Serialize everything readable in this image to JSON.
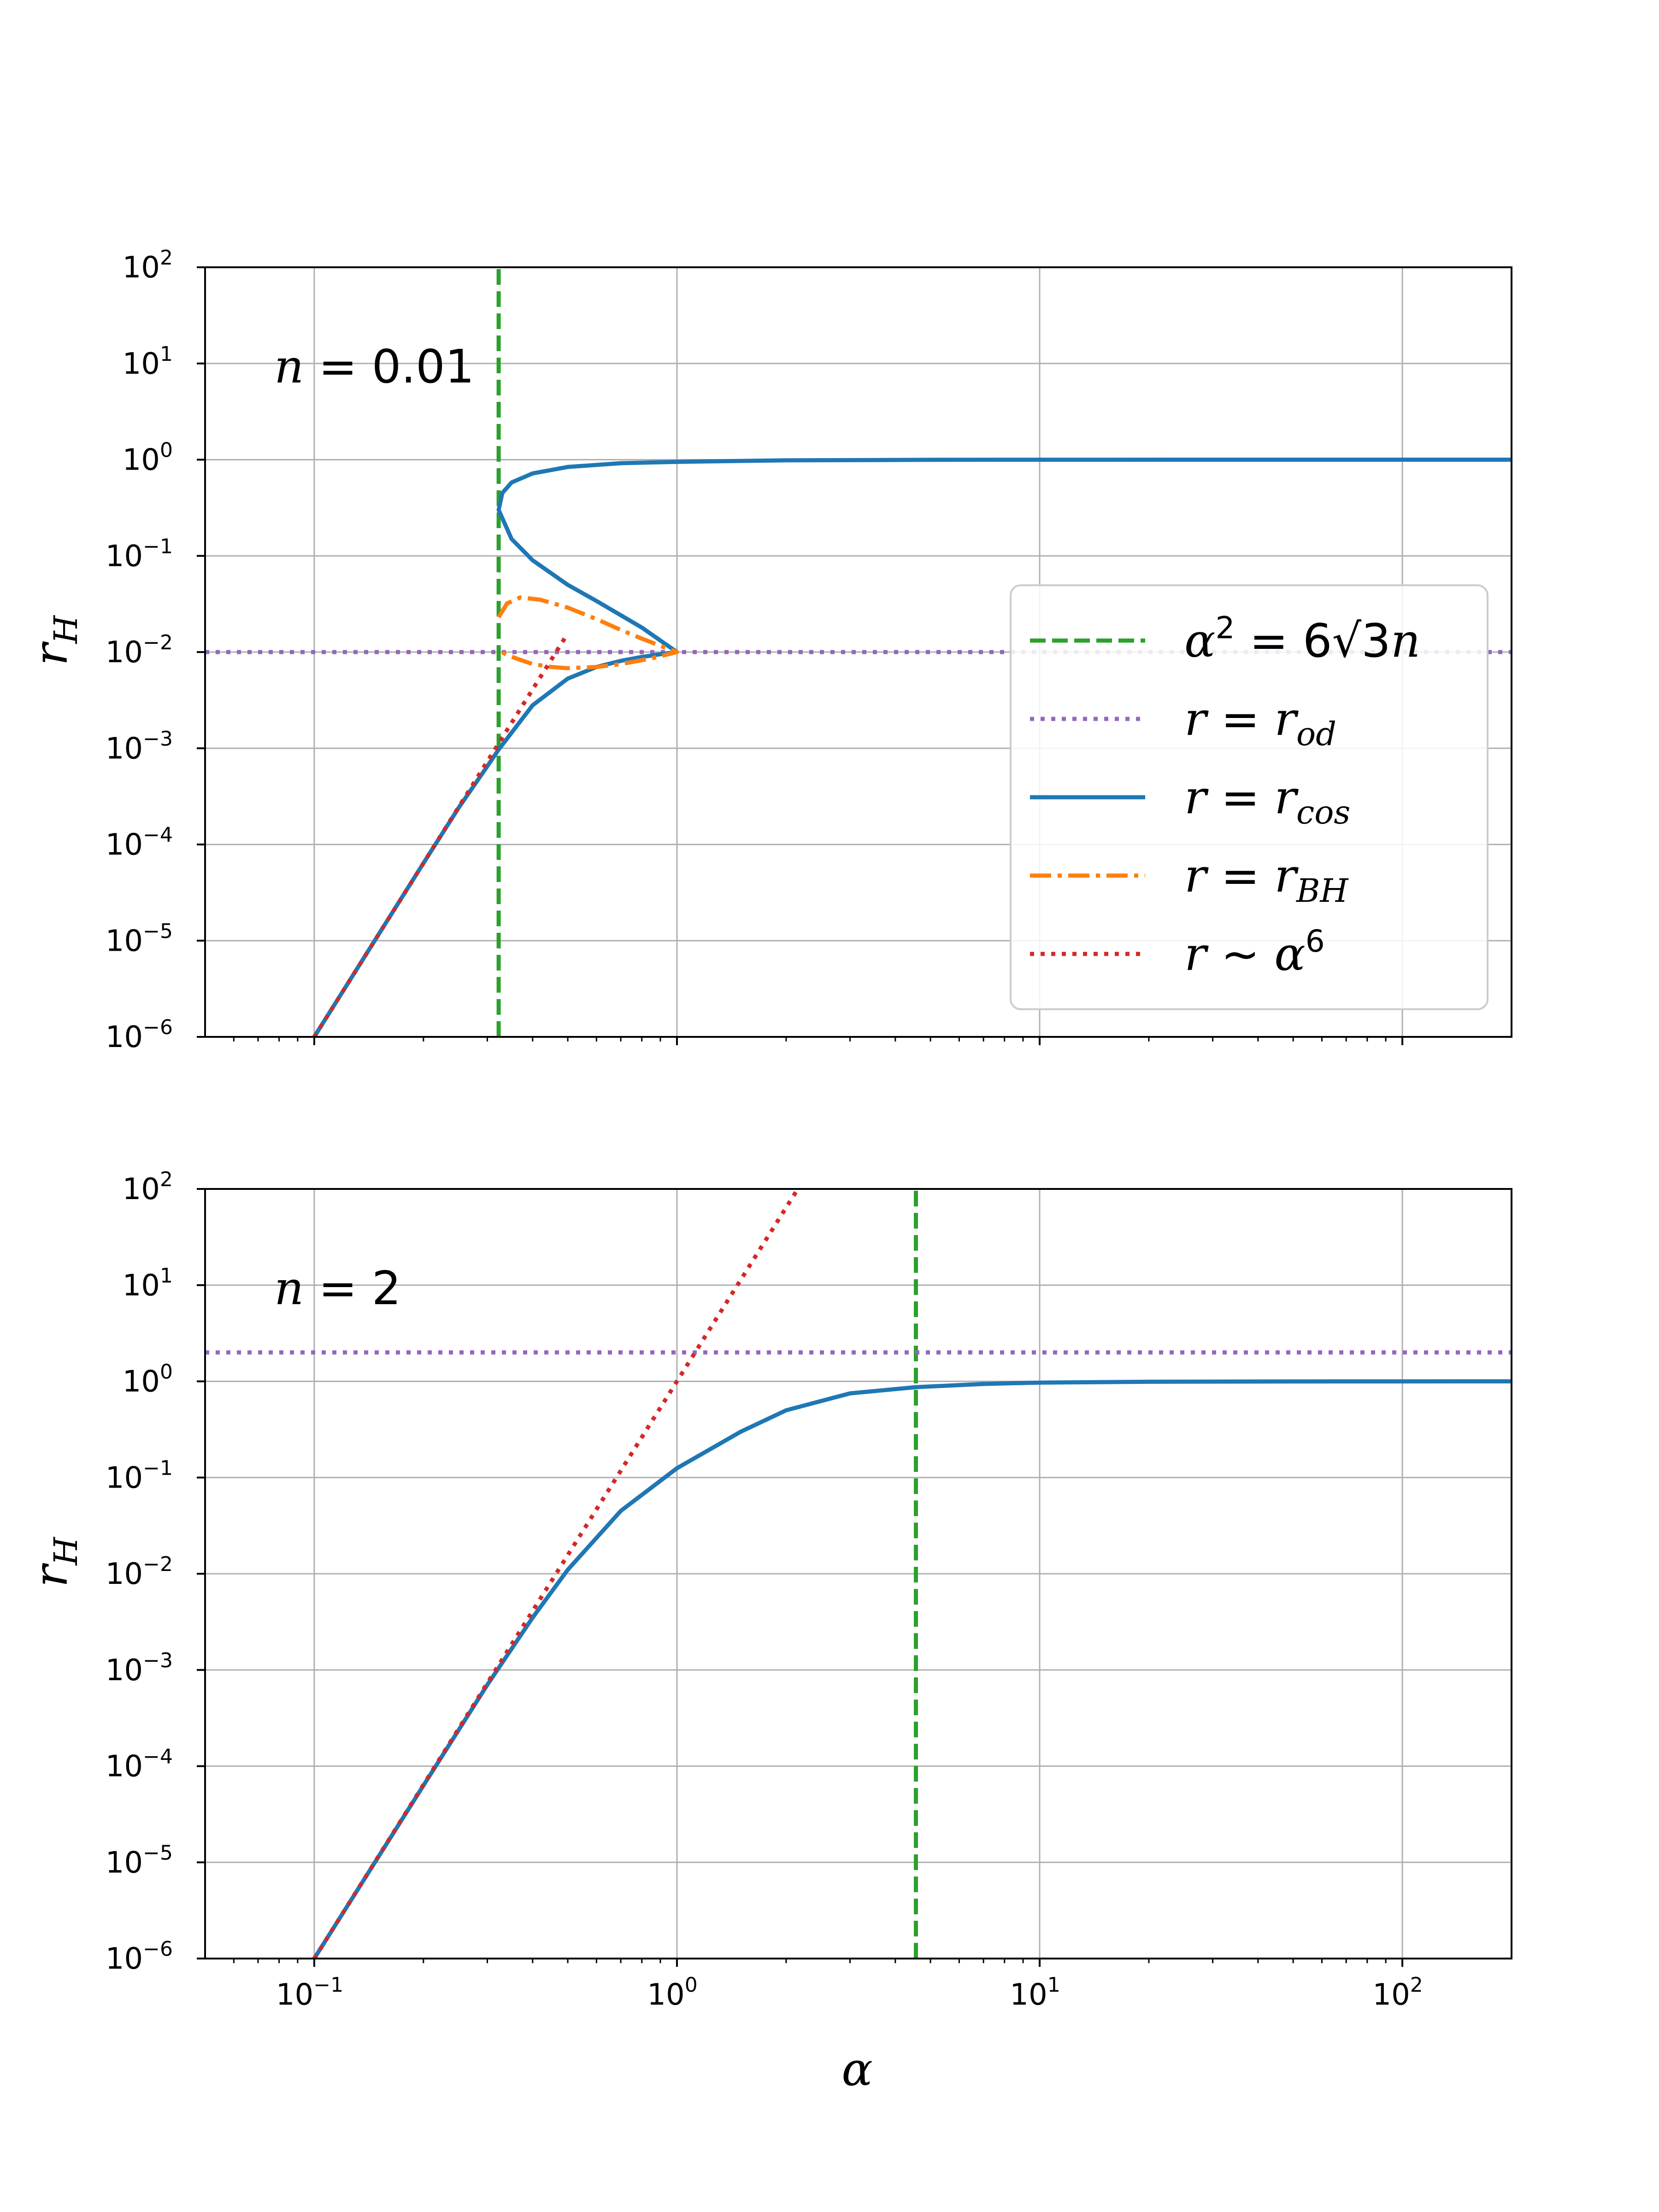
{
  "chart_data": [
    {
      "type": "line",
      "annotation": "n = 0.01",
      "xlabel": "α",
      "ylabel": "r_H",
      "xscale": "log",
      "yscale": "log",
      "xlim": [
        0.05,
        200
      ],
      "ylim": [
        1e-06,
        100
      ],
      "grid": true,
      "legend_position": "center-right",
      "x_ticks": [
        "10^-1",
        "10^0",
        "10^1",
        "10^2"
      ],
      "y_ticks": [
        "10^-6",
        "10^-5",
        "10^-4",
        "10^-3",
        "10^-2",
        "10^-1",
        "10^0",
        "10^1",
        "10^2"
      ],
      "x_tick_labels_shown": false,
      "series": [
        {
          "name": "α² = 6√3 n",
          "style": "dashed",
          "color": "#2ca02c",
          "x": [
            0.3224,
            0.3224
          ],
          "y": [
            1e-06,
            100
          ]
        },
        {
          "name": "r = r_od",
          "style": "dotted",
          "color": "#9467bd",
          "x": [
            0.05,
            200
          ],
          "y": [
            0.01,
            0.01
          ]
        },
        {
          "name": "r = r_cos",
          "style": "solid",
          "color": "#1f77b4",
          "x": [
            0.1,
            0.15,
            0.2,
            0.25,
            0.3,
            0.3224,
            0.4,
            0.5,
            0.6,
            0.7,
            0.8,
            0.9,
            1.0,
            0.8,
            0.6,
            0.5,
            0.4,
            0.35,
            0.3224,
            0.33,
            0.35,
            0.4,
            0.5,
            0.7,
            1.0,
            2,
            5,
            10,
            50,
            200
          ],
          "y": [
            1e-06,
            1.14e-05,
            6.4e-05,
            0.00024,
            0.00065,
            0.00097,
            0.0028,
            0.0053,
            0.007,
            0.0081,
            0.0089,
            0.0095,
            0.01,
            0.018,
            0.034,
            0.05,
            0.09,
            0.15,
            0.3,
            0.45,
            0.58,
            0.72,
            0.84,
            0.92,
            0.95,
            0.985,
            0.997,
            0.999,
            1.0,
            1.0
          ]
        },
        {
          "name": "r = r_BH",
          "style": "dashdot",
          "color": "#ff7f0e",
          "x": [
            0.3224,
            0.34,
            0.37,
            0.42,
            0.5,
            0.6,
            0.7,
            0.8,
            0.9,
            1.0,
            0.85,
            0.7,
            0.6,
            0.5,
            0.45,
            0.4,
            0.37,
            0.34,
            0.3224
          ],
          "y": [
            0.023,
            0.032,
            0.037,
            0.035,
            0.029,
            0.022,
            0.017,
            0.0138,
            0.0116,
            0.01,
            0.0086,
            0.0075,
            0.007,
            0.0068,
            0.007,
            0.0075,
            0.0083,
            0.0093,
            0.0105
          ]
        },
        {
          "name": "r ~ α⁶",
          "style": "dotted",
          "color": "#d62728",
          "x": [
            0.1,
            0.5
          ],
          "y": [
            1e-06,
            0.0156
          ]
        }
      ]
    },
    {
      "type": "line",
      "annotation": "n = 2",
      "xlabel": "α",
      "ylabel": "r_H",
      "xscale": "log",
      "yscale": "log",
      "xlim": [
        0.05,
        200
      ],
      "ylim": [
        1e-06,
        100
      ],
      "grid": true,
      "x_ticks": [
        "10^-1",
        "10^0",
        "10^1",
        "10^2"
      ],
      "y_ticks": [
        "10^-6",
        "10^-5",
        "10^-4",
        "10^-3",
        "10^-2",
        "10^-1",
        "10^0",
        "10^1",
        "10^2"
      ],
      "x_tick_labels_shown": true,
      "series": [
        {
          "name": "α² = 6√3 n",
          "style": "dashed",
          "color": "#2ca02c",
          "x": [
            4.559,
            4.559
          ],
          "y": [
            1e-06,
            100
          ]
        },
        {
          "name": "r = r_od",
          "style": "dotted",
          "color": "#9467bd",
          "x": [
            0.05,
            200
          ],
          "y": [
            2,
            2
          ]
        },
        {
          "name": "r = r_cos",
          "style": "solid",
          "color": "#1f77b4",
          "x": [
            0.1,
            0.15,
            0.2,
            0.3,
            0.4,
            0.5,
            0.7,
            1.0,
            1.5,
            2,
            3,
            4.559,
            7,
            10,
            20,
            50,
            200
          ],
          "y": [
            1e-06,
            1.13e-05,
            6.3e-05,
            0.0007,
            0.0035,
            0.011,
            0.045,
            0.125,
            0.3,
            0.5,
            0.75,
            0.87,
            0.94,
            0.97,
            0.99,
            0.998,
            1.0
          ]
        },
        {
          "name": "r ~ α⁶",
          "style": "dotted",
          "color": "#d62728",
          "x": [
            0.1,
            2.154
          ],
          "y": [
            1e-06,
            100
          ]
        }
      ]
    }
  ]
}
